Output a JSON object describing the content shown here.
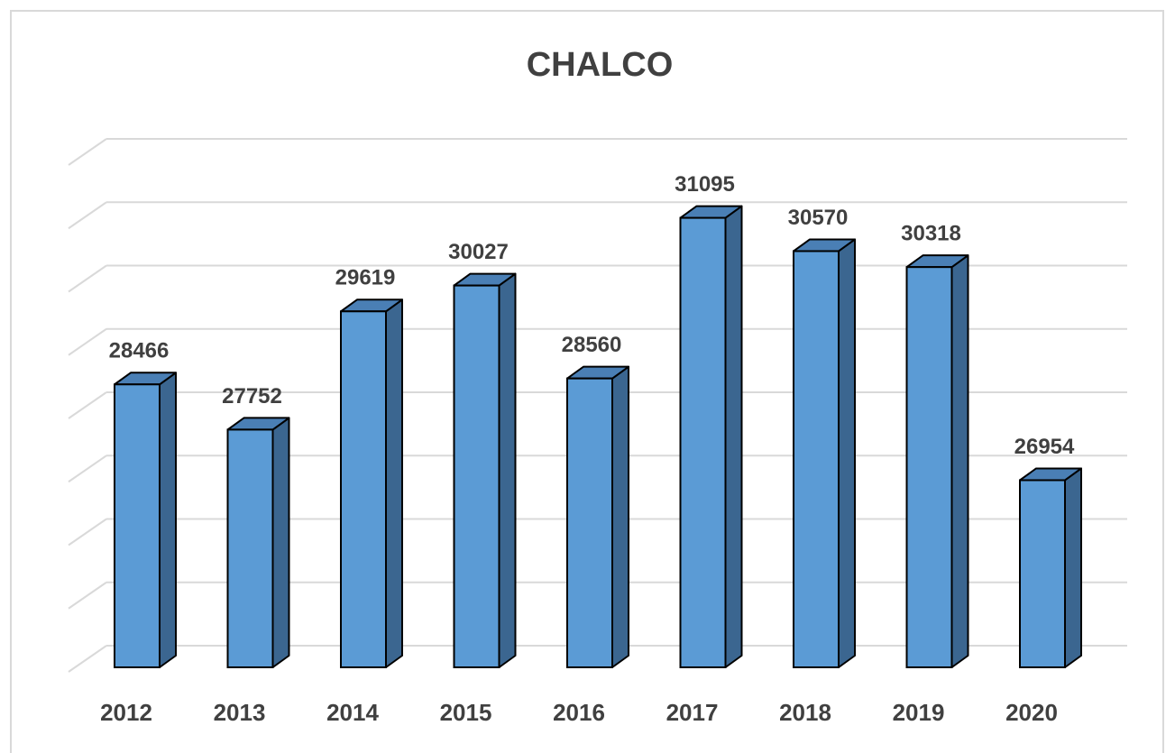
{
  "chart_data": {
    "type": "bar3d",
    "title": "CHALCO",
    "categories": [
      "2012",
      "2013",
      "2014",
      "2015",
      "2016",
      "2017",
      "2018",
      "2019",
      "2020"
    ],
    "values": [
      28466,
      27752,
      29619,
      30027,
      28560,
      31095,
      30570,
      30318,
      26954
    ],
    "color": "#5b9bd5",
    "ylim": [
      24000,
      32000
    ],
    "yticks": [
      24000,
      25000,
      26000,
      27000,
      28000,
      29000,
      30000,
      31000,
      32000
    ],
    "grid": true
  }
}
